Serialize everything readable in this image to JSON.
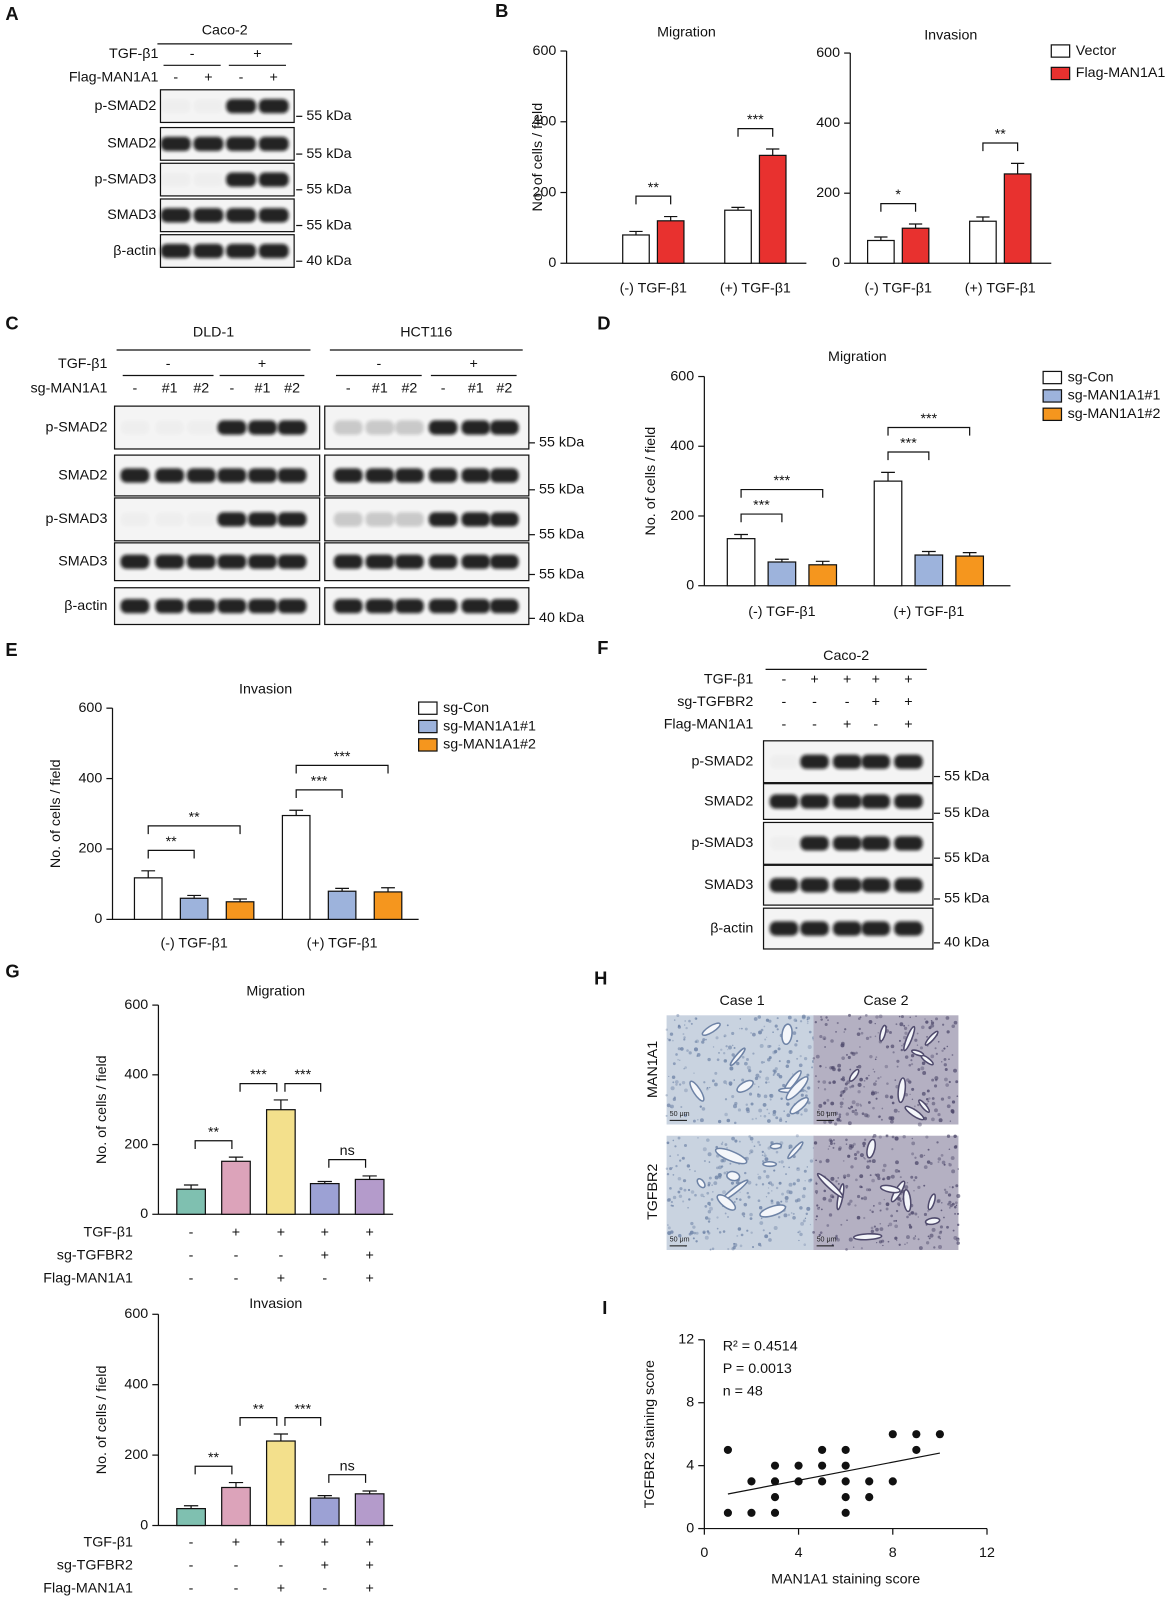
{
  "chart_data": [
    {
      "panel": "B",
      "type": "bar",
      "title": "Migration",
      "ylabel": "No. of cells / field",
      "categories": [
        "(-) TGF-β1",
        "(+) TGF-β1"
      ],
      "series": [
        {
          "color": "#ffffff",
          "values": [
            80,
            150
          ],
          "errors": [
            10,
            8
          ]
        },
        {
          "color": "#e8312f",
          "values": [
            120,
            305
          ],
          "errors": [
            12,
            18
          ]
        }
      ],
      "significance": [
        [
          "**"
        ],
        [
          "***"
        ]
      ],
      "ylim": [
        0,
        600
      ],
      "yticks": [
        0,
        200,
        400,
        600
      ]
    },
    {
      "type": "bar",
      "title": "Invasion",
      "categories": [
        "(-) TGF-β1",
        "(+) TGF-β1"
      ],
      "series": [
        {
          "name": "Vector",
          "color": "#ffffff",
          "values": [
            65,
            120
          ],
          "errors": [
            10,
            12
          ]
        },
        {
          "name": "Flag-MAN1A1",
          "color": "#e8312f",
          "values": [
            100,
            255
          ],
          "errors": [
            12,
            30
          ]
        }
      ],
      "significance": [
        [
          "*"
        ],
        [
          "**"
        ]
      ],
      "ylim": [
        0,
        600
      ],
      "yticks": [
        0,
        200,
        400,
        600
      ]
    },
    {
      "panel": "D",
      "type": "bar",
      "title": "Migration",
      "ylabel": "No. of cells  / field",
      "categories": [
        "(-) TGF-β1",
        "(+) TGF-β1"
      ],
      "series": [
        {
          "name": "sg-Con",
          "color": "#ffffff",
          "values": [
            135,
            300
          ],
          "errors": [
            12,
            25
          ]
        },
        {
          "name": "sg-MAN1A1#1",
          "color": "#9db3dc",
          "values": [
            68,
            88
          ],
          "errors": [
            8,
            10
          ]
        },
        {
          "name": "sg-MAN1A1#2",
          "color": "#f5961e",
          "values": [
            60,
            85
          ],
          "errors": [
            10,
            10
          ]
        }
      ],
      "significance": [
        [
          "***",
          "***"
        ],
        [
          "***",
          "***"
        ]
      ],
      "ylim": [
        0,
        600
      ],
      "yticks": [
        0,
        200,
        400,
        600
      ]
    },
    {
      "panel": "E",
      "type": "bar",
      "title": "Invasion",
      "ylabel": "No. of cells / field",
      "categories": [
        "(-) TGF-β1",
        "(+) TGF-β1"
      ],
      "series": [
        {
          "name": "sg-Con",
          "color": "#ffffff",
          "values": [
            118,
            295
          ],
          "errors": [
            20,
            15
          ]
        },
        {
          "name": "sg-MAN1A1#1",
          "color": "#9db3dc",
          "values": [
            60,
            80
          ],
          "errors": [
            8,
            8
          ]
        },
        {
          "name": "sg-MAN1A1#2",
          "color": "#f5961e",
          "values": [
            50,
            78
          ],
          "errors": [
            8,
            12
          ]
        }
      ],
      "significance": [
        [
          "**",
          "**"
        ],
        [
          "***",
          "***"
        ]
      ],
      "ylim": [
        0,
        600
      ],
      "yticks": [
        0,
        200,
        400,
        600
      ]
    },
    {
      "panel": "G",
      "type": "bar",
      "title": "Migration",
      "ylabel": "No. of cells / field",
      "values": [
        72,
        152,
        300,
        88,
        100
      ],
      "errors": [
        12,
        12,
        28,
        6,
        10
      ],
      "colors": [
        "#7fc0b0",
        "#dca3ba",
        "#f3e08c",
        "#9ca1d4",
        "#b49bcb"
      ],
      "significance": [
        "**",
        "***",
        "***",
        "ns"
      ],
      "conditions": [
        {
          "label": "TGF-β1",
          "signs": [
            "-",
            "+",
            "+",
            "+",
            "+"
          ]
        },
        {
          "label": "sg-TGFBR2",
          "signs": [
            "-",
            "-",
            "-",
            "+",
            "+"
          ]
        },
        {
          "label": "Flag-MAN1A1",
          "signs": [
            "-",
            "-",
            "+",
            "-",
            "+"
          ]
        }
      ],
      "ylim": [
        0,
        600
      ],
      "yticks": [
        0,
        200,
        400,
        600
      ]
    },
    {
      "type": "bar",
      "title": "Invasion",
      "ylabel": "No. of cells / field",
      "values": [
        48,
        108,
        240,
        78,
        90
      ],
      "errors": [
        8,
        14,
        20,
        7,
        8
      ],
      "colors": [
        "#7fc0b0",
        "#dca3ba",
        "#f3e08c",
        "#9ca1d4",
        "#b49bcb"
      ],
      "significance": [
        "**",
        "**",
        "***",
        "ns"
      ],
      "conditions": [
        {
          "label": "TGF-β1",
          "signs": [
            "-",
            "+",
            "+",
            "+",
            "+"
          ]
        },
        {
          "label": "sg-TGFBR2",
          "signs": [
            "-",
            "-",
            "-",
            "+",
            "+"
          ]
        },
        {
          "label": "Flag-MAN1A1",
          "signs": [
            "-",
            "-",
            "+",
            "-",
            "+"
          ]
        }
      ],
      "ylim": [
        0,
        600
      ],
      "yticks": [
        0,
        200,
        400,
        600
      ]
    },
    {
      "panel": "I",
      "type": "scatter",
      "xlabel": "MAN1A1 staining score",
      "ylabel": "TGFBR2 staining score",
      "x": [
        1,
        1,
        2,
        2,
        3,
        3,
        3,
        3,
        4,
        4,
        5,
        5,
        5,
        6,
        6,
        6,
        6,
        6,
        7,
        7,
        8,
        8,
        9,
        9,
        10
      ],
      "y": [
        5,
        1,
        3,
        1,
        4,
        3,
        2,
        1,
        3,
        4,
        5,
        4,
        3,
        5,
        4,
        3,
        2,
        1,
        3,
        2,
        6,
        3,
        6,
        5,
        6
      ],
      "fit": {
        "x": [
          1,
          10
        ],
        "y": [
          2.2,
          4.8
        ]
      },
      "annotations": [
        "R² = 0.4514",
        "P = 0.0013",
        "n = 48"
      ],
      "xlim": [
        0,
        12
      ],
      "xticks": [
        0,
        4,
        8,
        12
      ],
      "ylim": [
        0,
        12
      ],
      "yticks": [
        0,
        4,
        8,
        12
      ]
    }
  ],
  "blots": [
    {
      "panel": "A",
      "cell_lines": [
        "Caco-2"
      ],
      "conditions": [
        {
          "label": "TGF-β1",
          "signs": [
            "-",
            "+"
          ]
        },
        {
          "label": "Flag-MAN1A1",
          "signs": [
            "-",
            "+",
            "-",
            "+"
          ]
        }
      ],
      "rows": [
        {
          "label": "p-SMAD2",
          "marker": "55 kDa"
        },
        {
          "label": "SMAD2",
          "marker": "55 kDa"
        },
        {
          "label": "p-SMAD3",
          "marker": "55 kDa"
        },
        {
          "label": "SMAD3",
          "marker": "55 kDa"
        },
        {
          "label": "β-actin",
          "marker": "40 kDa"
        }
      ]
    },
    {
      "panel": "C",
      "cell_lines": [
        "DLD-1",
        "HCT116"
      ],
      "conditions": [
        {
          "label": "TGF-β1",
          "signs": [
            "-",
            "+"
          ]
        },
        {
          "label": "sg-MAN1A1",
          "signs": [
            "-",
            "#1",
            "#2",
            "-",
            "#1",
            "#2"
          ]
        }
      ],
      "rows": [
        {
          "label": "p-SMAD2",
          "marker": "55 kDa"
        },
        {
          "label": "SMAD2",
          "marker": "55 kDa"
        },
        {
          "label": "p-SMAD3",
          "marker": "55 kDa"
        },
        {
          "label": "SMAD3",
          "marker": "55 kDa"
        },
        {
          "label": "β-actin",
          "marker": "40 kDa"
        }
      ]
    },
    {
      "panel": "F",
      "cell_lines": [
        "Caco-2"
      ],
      "conditions": [
        {
          "label": "TGF-β1",
          "signs": [
            "-",
            "+",
            "+",
            "+",
            "+"
          ]
        },
        {
          "label": "sg-TGFBR2",
          "signs": [
            "-",
            "-",
            "-",
            "+",
            "+"
          ]
        },
        {
          "label": "Flag-MAN1A1",
          "signs": [
            "-",
            "-",
            "+",
            "-",
            "+"
          ]
        }
      ],
      "rows": [
        {
          "label": "p-SMAD2",
          "marker": "55 kDa"
        },
        {
          "label": "SMAD2",
          "marker": "55 kDa"
        },
        {
          "label": "p-SMAD3",
          "marker": "55 kDa"
        },
        {
          "label": "SMAD3",
          "marker": "55 kDa"
        },
        {
          "label": "β-actin",
          "marker": "40 kDa"
        }
      ]
    }
  ],
  "ihc": {
    "panel": "H",
    "columns": [
      "Case 1",
      "Case 2"
    ],
    "rows": [
      "MAN1A1",
      "TGFBR2"
    ],
    "scale_bar": "50 μm"
  }
}
